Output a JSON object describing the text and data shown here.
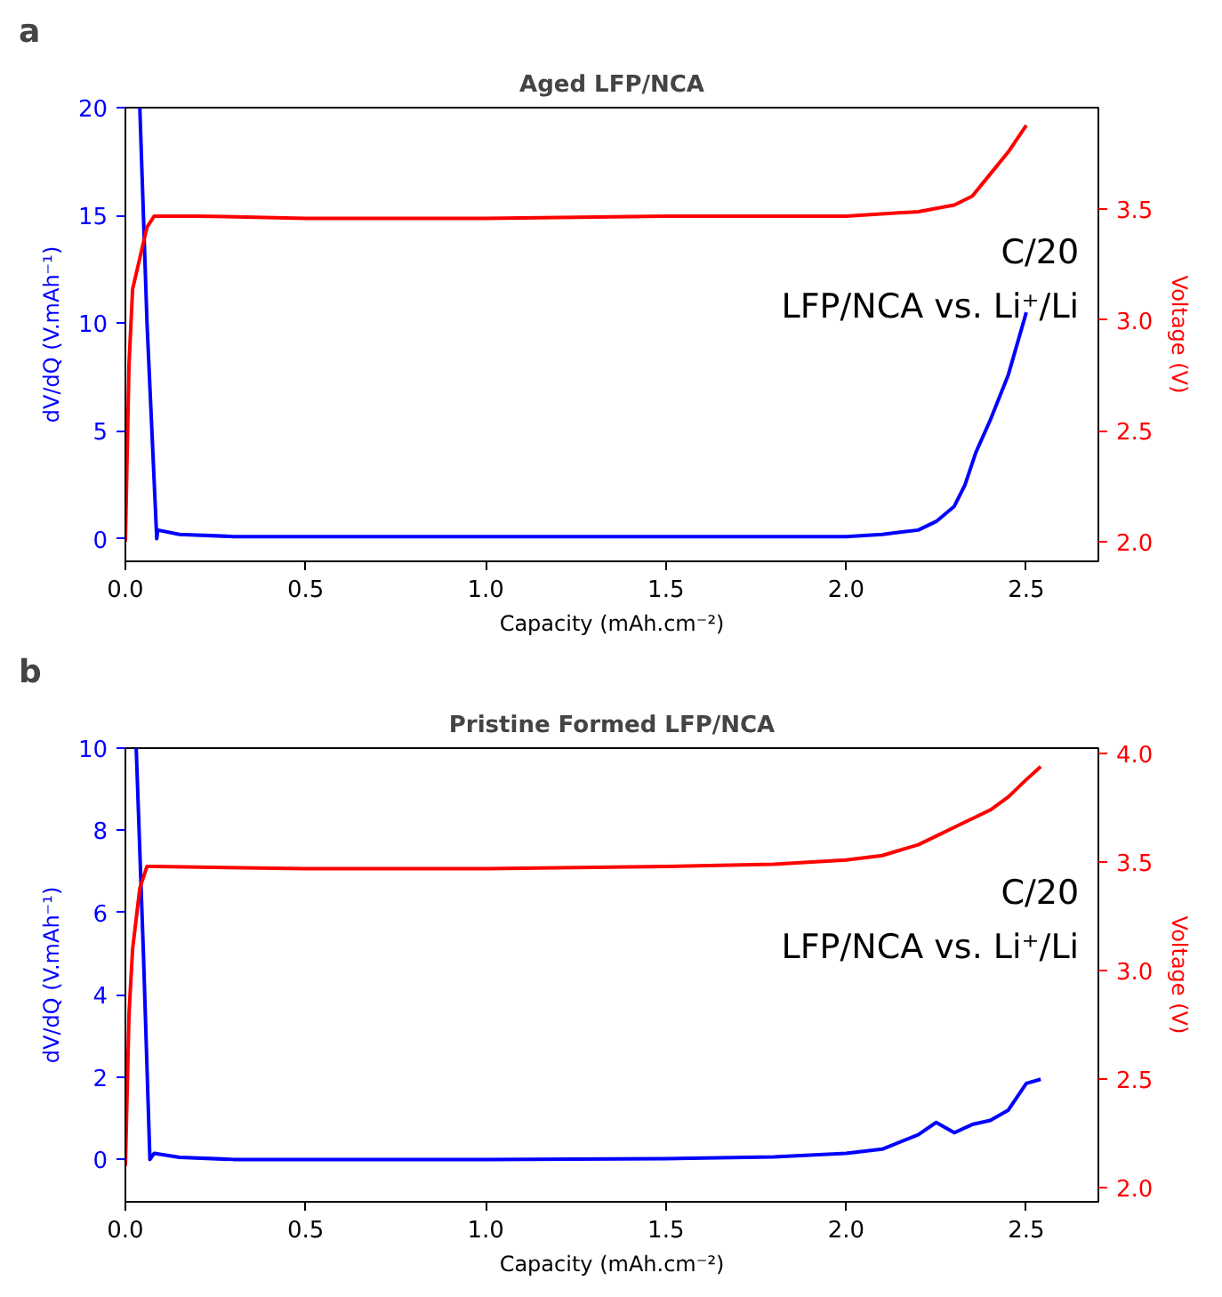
{
  "chart_data": [
    {
      "type": "line",
      "title": "Aged LFP/NCA",
      "xlabel": "Capacity (mAh.cm⁻²)",
      "ylabel": "dV/dQ (V.mAh⁻¹)",
      "y2label": "Voltage (V)",
      "annotations": [
        "a",
        "C/20",
        "LFP/NCA vs. Li⁺/Li"
      ],
      "xlim": [
        0,
        2.7
      ],
      "xticks": [
        {
          "value": 0,
          "label": "0.0"
        },
        {
          "value": 0.5,
          "label": "0.5"
        },
        {
          "value": 1,
          "label": "1.0"
        },
        {
          "value": 1.5,
          "label": "1.5"
        },
        {
          "value": 2,
          "label": "2.0"
        },
        {
          "value": 2.5,
          "label": "2.5"
        }
      ],
      "ylim": [
        -1.05,
        20
      ],
      "yticks": [
        0,
        5,
        10,
        15,
        20
      ],
      "y2lim": [
        1.91,
        3.96
      ],
      "y2ticks": [
        {
          "value": 2,
          "label": "2.0"
        },
        {
          "value": 2.5,
          "label": "2.5"
        },
        {
          "value": 3,
          "label": "3.0"
        },
        {
          "value": 3.5,
          "label": "3.5"
        }
      ],
      "grid": false,
      "series": [
        {
          "color": "#0000ff",
          "x": [
            0.04,
            0.06,
            0.087,
            0.09,
            0.15,
            0.3,
            0.6,
            1.0,
            1.5,
            2.0,
            2.1,
            2.2,
            2.25,
            2.3,
            2.33,
            2.36,
            2.4,
            2.45,
            2.5
          ],
          "values": [
            20,
            10,
            0,
            0.4,
            0.2,
            0.1,
            0.1,
            0.1,
            0.1,
            0.1,
            0.2,
            0.4,
            0.8,
            1.5,
            2.5,
            4,
            5.5,
            7.6,
            10.5
          ]
        },
        {
          "color": "#ff0000",
          "axis": "y2",
          "x": [
            0,
            0.01,
            0.02,
            0.04,
            0.06,
            0.08,
            0.2,
            0.5,
            1.0,
            1.5,
            2.0,
            2.2,
            2.3,
            2.35,
            2.4,
            2.45,
            2.5
          ],
          "values": [
            2.0,
            2.8,
            3.14,
            3.28,
            3.42,
            3.47,
            3.47,
            3.46,
            3.46,
            3.47,
            3.47,
            3.49,
            3.52,
            3.56,
            3.66,
            3.76,
            3.88
          ]
        }
      ]
    },
    {
      "type": "line",
      "title": "Pristine Formed LFP/NCA",
      "xlabel": "Capacity (mAh.cm⁻²)",
      "ylabel": "dV/dQ (V.mAh⁻¹)",
      "y2label": "Voltage (V)",
      "annotations": [
        "b",
        "C/20",
        "LFP/NCA vs. Li⁺/Li"
      ],
      "xlim": [
        0,
        2.7
      ],
      "xticks": [
        {
          "value": 0,
          "label": "0.0"
        },
        {
          "value": 0.5,
          "label": "0.5"
        },
        {
          "value": 1,
          "label": "1.0"
        },
        {
          "value": 1.5,
          "label": "1.5"
        },
        {
          "value": 2,
          "label": "2.0"
        },
        {
          "value": 2.5,
          "label": "2.5"
        }
      ],
      "ylim": [
        -1.03,
        10
      ],
      "yticks": [
        0,
        2,
        4,
        6,
        8,
        10
      ],
      "y2lim": [
        1.935,
        4.025
      ],
      "y2ticks": [
        {
          "value": 2,
          "label": "2.0"
        },
        {
          "value": 2.5,
          "label": "2.5"
        },
        {
          "value": 3,
          "label": "3.0"
        },
        {
          "value": 3.5,
          "label": "3.5"
        },
        {
          "value": 4,
          "label": "4.0"
        }
      ],
      "grid": false,
      "series": [
        {
          "color": "#0000ff",
          "x": [
            0.03,
            0.05,
            0.068,
            0.08,
            0.15,
            0.3,
            1.0,
            1.5,
            1.8,
            2.0,
            2.1,
            2.2,
            2.25,
            2.3,
            2.35,
            2.4,
            2.45,
            2.5,
            2.54
          ],
          "values": [
            10,
            5,
            0,
            0.15,
            0.05,
            0,
            0,
            0.02,
            0.06,
            0.15,
            0.25,
            0.6,
            0.9,
            0.65,
            0.85,
            0.95,
            1.2,
            1.85,
            1.95
          ]
        },
        {
          "color": "#ff0000",
          "axis": "y2",
          "x": [
            0,
            0.01,
            0.02,
            0.04,
            0.06,
            0.08,
            0.5,
            1.0,
            1.5,
            1.8,
            2.0,
            2.1,
            2.2,
            2.25,
            2.3,
            2.4,
            2.45,
            2.5,
            2.54
          ],
          "values": [
            2.1,
            2.8,
            3.1,
            3.38,
            3.48,
            3.48,
            3.47,
            3.47,
            3.48,
            3.49,
            3.51,
            3.53,
            3.58,
            3.62,
            3.66,
            3.74,
            3.8,
            3.88,
            3.94
          ]
        }
      ]
    }
  ]
}
